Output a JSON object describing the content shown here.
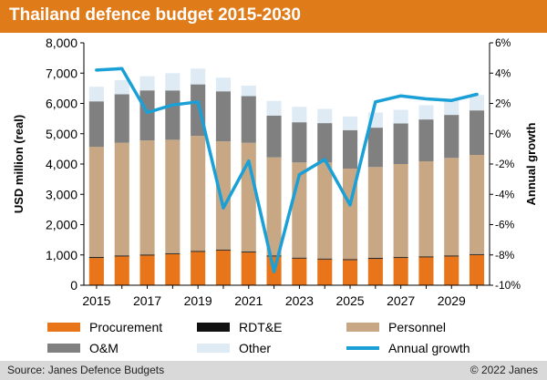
{
  "chart_data": {
    "type": "bar",
    "title": "Thailand defence budget 2015-2030",
    "ylabel": "USD million (real)",
    "y2label": "Annual growth",
    "ylim": [
      0,
      8000
    ],
    "y2lim": [
      -10,
      6
    ],
    "yticks": [
      "0",
      "1,000",
      "2,000",
      "3,000",
      "4,000",
      "5,000",
      "6,000",
      "7,000",
      "8,000"
    ],
    "y2ticks": [
      "-10%",
      "-8%",
      "-6%",
      "-4%",
      "-2%",
      "0%",
      "2%",
      "4%",
      "6%"
    ],
    "categories": [
      "2015",
      "2016",
      "2017",
      "2018",
      "2019",
      "2020",
      "2021",
      "2022",
      "2023",
      "2024",
      "2025",
      "2026",
      "2027",
      "2028",
      "2029",
      "2030"
    ],
    "xtick_labels": [
      "2015",
      "2017",
      "2019",
      "2021",
      "2023",
      "2025",
      "2027",
      "2029"
    ],
    "series": [
      {
        "name": "Procurement",
        "kind": "stack",
        "color": "#e8751a",
        "values": [
          900,
          950,
          980,
          1030,
          1100,
          1150,
          1080,
          950,
          880,
          850,
          830,
          870,
          900,
          920,
          950,
          1000
        ]
      },
      {
        "name": "RDT&E",
        "kind": "stack",
        "color": "#111111",
        "values": [
          30,
          30,
          30,
          30,
          30,
          30,
          30,
          30,
          30,
          30,
          30,
          30,
          30,
          30,
          30,
          30
        ]
      },
      {
        "name": "Personnel",
        "kind": "stack",
        "color": "#c8a884",
        "values": [
          3640,
          3720,
          3770,
          3740,
          3800,
          3570,
          3590,
          3240,
          3140,
          3170,
          2990,
          3000,
          3070,
          3140,
          3220,
          3270
        ]
      },
      {
        "name": "O&M",
        "kind": "stack",
        "color": "#808080",
        "values": [
          1500,
          1600,
          1650,
          1630,
          1700,
          1650,
          1540,
          1380,
          1330,
          1300,
          1270,
          1300,
          1340,
          1380,
          1420,
          1470
        ]
      },
      {
        "name": "Other",
        "kind": "stack",
        "color": "#deebf5",
        "values": [
          480,
          470,
          470,
          570,
          520,
          450,
          350,
          480,
          510,
          470,
          450,
          500,
          450,
          470,
          490,
          510
        ]
      },
      {
        "name": "Annual growth",
        "kind": "line",
        "axis": "right",
        "color": "#1aa0d6",
        "values": [
          4.2,
          4.3,
          1.4,
          1.9,
          2.1,
          -4.9,
          -1.8,
          -9.1,
          -2.7,
          -1.7,
          -4.7,
          2.1,
          2.5,
          2.3,
          2.2,
          2.6
        ]
      }
    ],
    "legend": {
      "position": "bottom",
      "items": [
        "Procurement",
        "RDT&E",
        "Personnel",
        "O&M",
        "Other",
        "Annual growth"
      ]
    },
    "grid": false
  },
  "footer": {
    "source": "Source: Janes Defence Budgets",
    "copyright": "© 2022 Janes"
  }
}
